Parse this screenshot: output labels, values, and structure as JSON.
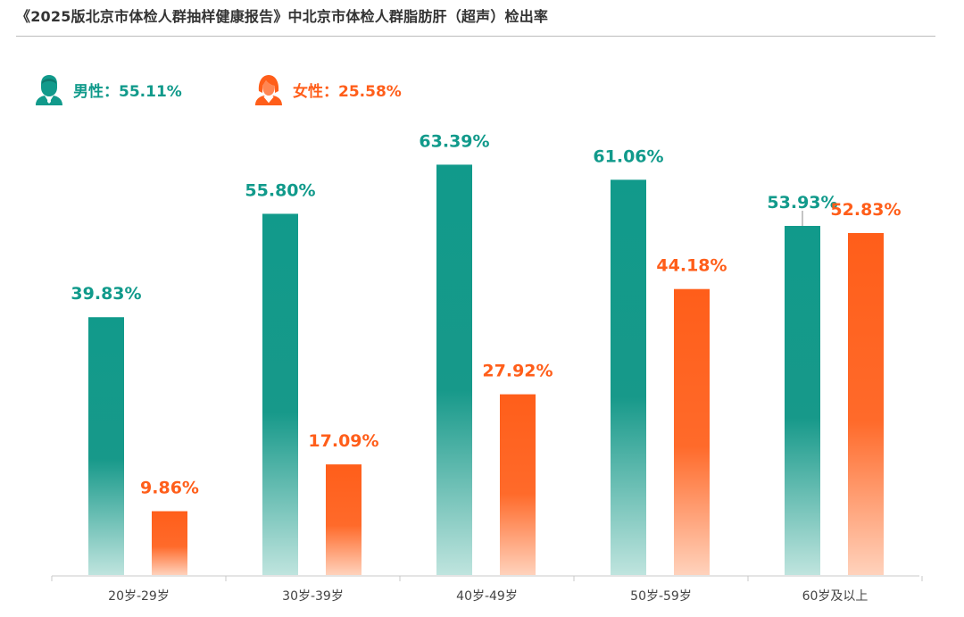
{
  "title": "《2025版北京市体检人群抽样健康报告》中北京市体检人群脂肪肝（超声）检出率",
  "legend": {
    "male": {
      "label": "男性：55.11%",
      "color": "#119A8B",
      "icon": "male-person-icon"
    },
    "female": {
      "label": "女性：25.58%",
      "color": "#FF5E1A",
      "icon": "female-person-icon"
    }
  },
  "chart_data": {
    "type": "bar",
    "title": "《2025版北京市体检人群抽样健康报告》中北京市体检人群脂肪肝（超声）检出率",
    "categories": [
      "20岁-29岁",
      "30岁-39岁",
      "40岁-49岁",
      "50岁-59岁",
      "60岁及以上"
    ],
    "series": [
      {
        "name": "男性",
        "values": [
          39.83,
          55.8,
          63.39,
          61.06,
          53.93
        ],
        "labels": [
          "39.83%",
          "55.80%",
          "63.39%",
          "61.06%",
          "53.93%"
        ],
        "color": "#119A8B"
      },
      {
        "name": "女性",
        "values": [
          9.86,
          17.09,
          27.92,
          44.18,
          52.83
        ],
        "labels": [
          "9.86%",
          "17.09%",
          "27.92%",
          "44.18%",
          "52.83%"
        ],
        "color": "#FF5E1A"
      }
    ],
    "unit": "%",
    "grid": false,
    "legend_position": "top-left"
  }
}
